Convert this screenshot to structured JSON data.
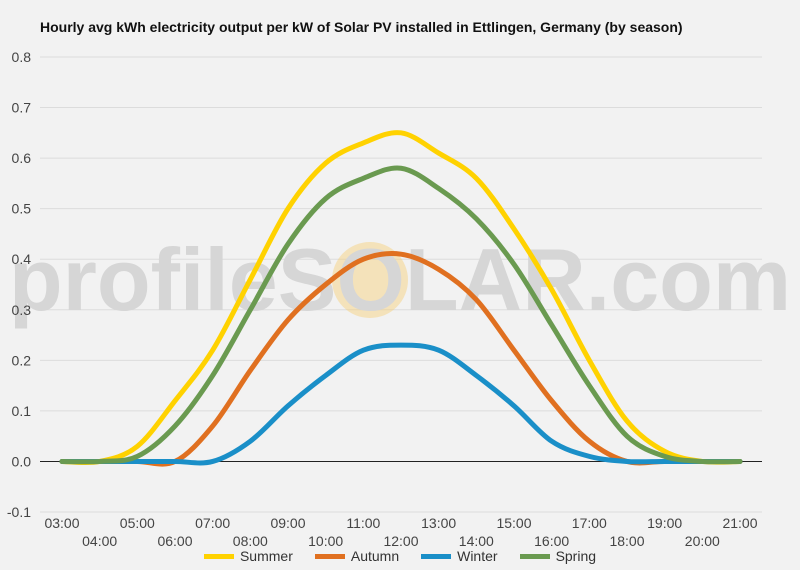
{
  "chart_data": {
    "type": "line",
    "title": "Hourly avg kWh electricity output per kW of Solar PV installed in Ettlingen, Germany (by season)",
    "xlabel": "",
    "ylabel": "",
    "ylim": [
      -0.1,
      0.8
    ],
    "yticks": [
      "-0.1",
      "0.0",
      "0.1",
      "0.2",
      "0.3",
      "0.4",
      "0.5",
      "0.6",
      "0.7",
      "0.8"
    ],
    "x": [
      "03:00",
      "04:00",
      "05:00",
      "06:00",
      "07:00",
      "08:00",
      "09:00",
      "10:00",
      "11:00",
      "12:00",
      "13:00",
      "14:00",
      "15:00",
      "16:00",
      "17:00",
      "18:00",
      "19:00",
      "20:00",
      "21:00"
    ],
    "grid": true,
    "legend_position": "bottom",
    "watermark": "profileSOLAR.com",
    "series": [
      {
        "name": "Summer",
        "color": "#ffd200",
        "values": [
          0.0,
          0.0,
          0.03,
          0.12,
          0.22,
          0.36,
          0.5,
          0.59,
          0.63,
          0.65,
          0.61,
          0.56,
          0.46,
          0.34,
          0.2,
          0.08,
          0.02,
          0.0,
          0.0
        ]
      },
      {
        "name": "Autumn",
        "color": "#e07020",
        "values": [
          0.0,
          0.0,
          0.0,
          0.0,
          0.07,
          0.18,
          0.28,
          0.35,
          0.4,
          0.41,
          0.38,
          0.32,
          0.22,
          0.12,
          0.04,
          0.0,
          0.0,
          0.0,
          0.0
        ]
      },
      {
        "name": "Winter",
        "color": "#1a8fc8",
        "values": [
          0.0,
          0.0,
          0.0,
          0.0,
          0.0,
          0.04,
          0.11,
          0.17,
          0.22,
          0.23,
          0.22,
          0.17,
          0.11,
          0.04,
          0.01,
          0.0,
          0.0,
          0.0,
          0.0
        ]
      },
      {
        "name": "Spring",
        "color": "#6a9a50",
        "values": [
          0.0,
          0.0,
          0.01,
          0.07,
          0.17,
          0.3,
          0.43,
          0.52,
          0.56,
          0.58,
          0.54,
          0.48,
          0.39,
          0.27,
          0.15,
          0.05,
          0.01,
          0.0,
          0.0
        ]
      }
    ]
  }
}
